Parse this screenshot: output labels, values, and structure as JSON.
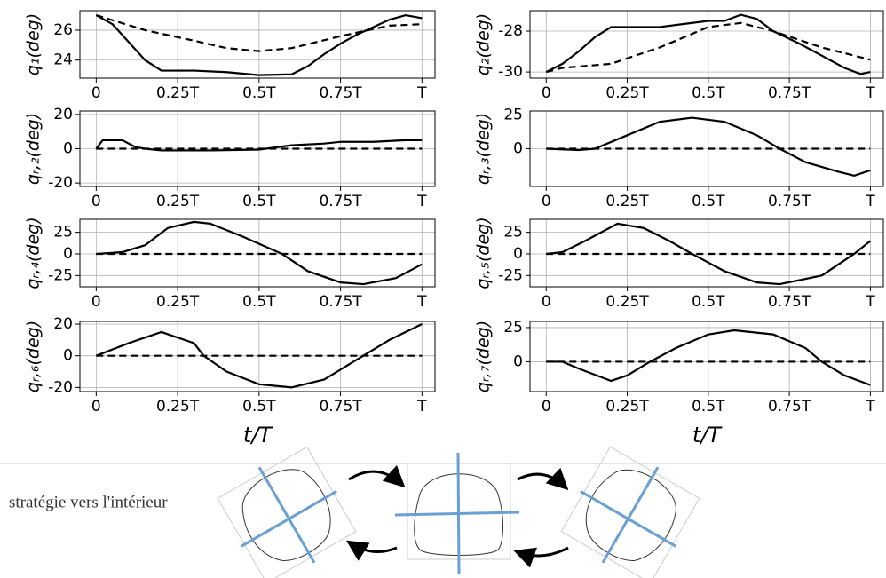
{
  "chart_data": [
    {
      "type": "line",
      "ylabel": "q₁(deg)",
      "xlim": [
        -0.05,
        1.04
      ],
      "ylim": [
        22.8,
        27.3
      ],
      "yticks": [
        24,
        26
      ],
      "grid": true,
      "xticks": [
        0,
        {
          "value": 0.25,
          "label": "0.25T"
        },
        {
          "value": 0.5,
          "label": "0.5T"
        },
        {
          "value": 0.75,
          "label": "0.75T"
        },
        {
          "value": 1,
          "label": "T"
        }
      ],
      "series": [
        {
          "color": "#000",
          "dash": false,
          "x": [
            0,
            0.05,
            0.1,
            0.15,
            0.2,
            0.3,
            0.4,
            0.5,
            0.6,
            0.65,
            0.7,
            0.75,
            0.8,
            0.85,
            0.9,
            0.95,
            1
          ],
          "values": [
            27,
            26.4,
            25.2,
            24,
            23.3,
            23.3,
            23.2,
            23,
            23.05,
            23.6,
            24.4,
            25.1,
            25.7,
            26.2,
            26.7,
            27,
            26.8
          ]
        },
        {
          "color": "#000",
          "dash": true,
          "x": [
            0,
            0.15,
            0.3,
            0.4,
            0.5,
            0.6,
            0.75,
            0.9,
            1
          ],
          "values": [
            27,
            26,
            25.3,
            24.8,
            24.6,
            24.8,
            25.6,
            26.3,
            26.4
          ]
        }
      ]
    },
    {
      "type": "line",
      "ylabel": "q₂(deg)",
      "xlim": [
        -0.05,
        1.04
      ],
      "ylim": [
        -30.3,
        -27
      ],
      "yticks": [
        -30,
        -28
      ],
      "grid": true,
      "xticks": [
        0,
        {
          "value": 0.25,
          "label": "0.25T"
        },
        {
          "value": 0.5,
          "label": "0.5T"
        },
        {
          "value": 0.75,
          "label": "0.75T"
        },
        {
          "value": 1,
          "label": "T"
        }
      ],
      "series": [
        {
          "color": "#000",
          "dash": false,
          "x": [
            0,
            0.05,
            0.1,
            0.15,
            0.2,
            0.35,
            0.5,
            0.55,
            0.6,
            0.65,
            0.7,
            0.78,
            0.85,
            0.92,
            0.97,
            1
          ],
          "values": [
            -30,
            -29.6,
            -29,
            -28.3,
            -27.8,
            -27.8,
            -27.5,
            -27.5,
            -27.2,
            -27.4,
            -28,
            -28.6,
            -29.2,
            -29.8,
            -30.1,
            -30
          ]
        },
        {
          "color": "#000",
          "dash": true,
          "x": [
            0,
            0.05,
            0.2,
            0.35,
            0.5,
            0.6,
            0.7,
            0.85,
            1
          ],
          "values": [
            -30,
            -29.8,
            -29.6,
            -28.8,
            -27.8,
            -27.6,
            -28,
            -28.8,
            -29.4
          ]
        }
      ]
    },
    {
      "type": "line",
      "ylabel": "qᵣ,₂(deg)",
      "xlim": [
        -0.05,
        1.04
      ],
      "ylim": [
        -22,
        22
      ],
      "yticks": [
        -20,
        0,
        20
      ],
      "grid": true,
      "xticks": [
        0,
        {
          "value": 0.25,
          "label": "0.25T"
        },
        {
          "value": 0.5,
          "label": "0.5T"
        },
        {
          "value": 0.75,
          "label": "0.75T"
        },
        {
          "value": 1,
          "label": "T"
        }
      ],
      "series": [
        {
          "color": "#000",
          "dash": false,
          "x": [
            0,
            0.02,
            0.08,
            0.12,
            0.15,
            0.2,
            0.35,
            0.5,
            0.6,
            0.7,
            0.75,
            0.85,
            0.95,
            1
          ],
          "values": [
            0,
            5,
            5,
            1,
            0,
            -1,
            -1,
            -0.5,
            2,
            3,
            4,
            4,
            5,
            5
          ]
        },
        {
          "color": "#000",
          "dash": true,
          "x": [
            0,
            1
          ],
          "values": [
            0,
            0
          ]
        }
      ]
    },
    {
      "type": "line",
      "ylabel": "qᵣ,₃(deg)",
      "xlim": [
        -0.05,
        1.04
      ],
      "ylim": [
        -28,
        28
      ],
      "yticks": [
        0,
        25
      ],
      "grid": true,
      "xticks": [
        0,
        {
          "value": 0.25,
          "label": "0.25T"
        },
        {
          "value": 0.5,
          "label": "0.5T"
        },
        {
          "value": 0.75,
          "label": "0.75T"
        },
        {
          "value": 1,
          "label": "T"
        }
      ],
      "series": [
        {
          "color": "#000",
          "dash": false,
          "x": [
            0,
            0.1,
            0.15,
            0.25,
            0.35,
            0.45,
            0.55,
            0.65,
            0.72,
            0.8,
            0.9,
            0.95,
            1
          ],
          "values": [
            0,
            -1,
            0,
            10,
            20,
            23,
            20,
            10,
            0,
            -10,
            -17,
            -20,
            -16
          ]
        },
        {
          "color": "#000",
          "dash": true,
          "x": [
            0,
            1
          ],
          "values": [
            0,
            0
          ]
        }
      ]
    },
    {
      "type": "line",
      "ylabel": "qᵣ,₄(deg)",
      "xlim": [
        -0.05,
        1.04
      ],
      "ylim": [
        -38,
        40
      ],
      "yticks": [
        -25,
        0,
        25
      ],
      "grid": true,
      "xticks": [
        0,
        {
          "value": 0.25,
          "label": "0.25T"
        },
        {
          "value": 0.5,
          "label": "0.5T"
        },
        {
          "value": 0.75,
          "label": "0.75T"
        },
        {
          "value": 1,
          "label": "T"
        }
      ],
      "series": [
        {
          "color": "#000",
          "dash": false,
          "x": [
            0,
            0.08,
            0.15,
            0.22,
            0.3,
            0.35,
            0.45,
            0.57,
            0.65,
            0.75,
            0.82,
            0.92,
            1
          ],
          "values": [
            0,
            2,
            10,
            30,
            37,
            35,
            20,
            0,
            -20,
            -33,
            -35,
            -28,
            -12
          ]
        },
        {
          "color": "#000",
          "dash": true,
          "x": [
            0,
            1
          ],
          "values": [
            0,
            0
          ]
        }
      ]
    },
    {
      "type": "line",
      "ylabel": "qᵣ,₅(deg)",
      "xlim": [
        -0.05,
        1.04
      ],
      "ylim": [
        -38,
        40
      ],
      "yticks": [
        -25,
        0,
        25
      ],
      "grid": true,
      "xticks": [
        0,
        {
          "value": 0.25,
          "label": "0.25T"
        },
        {
          "value": 0.5,
          "label": "0.5T"
        },
        {
          "value": 0.75,
          "label": "0.75T"
        },
        {
          "value": 1,
          "label": "T"
        }
      ],
      "series": [
        {
          "color": "#000",
          "dash": false,
          "x": [
            0,
            0.05,
            0.12,
            0.22,
            0.3,
            0.38,
            0.45,
            0.55,
            0.65,
            0.72,
            0.85,
            0.95,
            1
          ],
          "values": [
            0,
            2,
            15,
            35,
            30,
            15,
            0,
            -20,
            -33,
            -35,
            -25,
            0,
            15
          ]
        },
        {
          "color": "#000",
          "dash": true,
          "x": [
            0,
            1
          ],
          "values": [
            0,
            0
          ]
        }
      ]
    },
    {
      "type": "line",
      "ylabel": "qᵣ,₆(deg)",
      "xlabel": "t/T",
      "xlim": [
        -0.05,
        1.04
      ],
      "ylim": [
        -22.6,
        21.7
      ],
      "yticks": [
        -20,
        0,
        20
      ],
      "grid": true,
      "xticks": [
        0,
        {
          "value": 0.25,
          "label": "0.25T"
        },
        {
          "value": 0.5,
          "label": "0.5T"
        },
        {
          "value": 0.75,
          "label": "0.75T"
        },
        {
          "value": 1,
          "label": "T"
        }
      ],
      "series": [
        {
          "color": "#000",
          "dash": false,
          "x": [
            0,
            0.1,
            0.2,
            0.3,
            0.33,
            0.4,
            0.5,
            0.6,
            0.7,
            0.78,
            0.82,
            0.9,
            1
          ],
          "values": [
            0,
            8,
            15,
            8,
            0,
            -10,
            -18,
            -20,
            -15,
            -5,
            0,
            10,
            20
          ]
        },
        {
          "color": "#000",
          "dash": true,
          "x": [
            0,
            1
          ],
          "values": [
            0,
            0
          ]
        }
      ]
    },
    {
      "type": "line",
      "ylabel": "qᵣ,₇(deg)",
      "xlabel": "t/T",
      "xlim": [
        -0.05,
        1.04
      ],
      "ylim": [
        -21.8,
        29.5
      ],
      "yticks": [
        0,
        25
      ],
      "grid": true,
      "xticks": [
        0,
        {
          "value": 0.25,
          "label": "0.25T"
        },
        {
          "value": 0.5,
          "label": "0.5T"
        },
        {
          "value": 0.75,
          "label": "0.75T"
        },
        {
          "value": 1,
          "label": "T"
        }
      ],
      "series": [
        {
          "color": "#000",
          "dash": false,
          "x": [
            0,
            0.05,
            0.1,
            0.2,
            0.25,
            0.32,
            0.4,
            0.5,
            0.58,
            0.7,
            0.8,
            0.85,
            0.92,
            1
          ],
          "values": [
            0,
            0,
            -5,
            -14,
            -10,
            0,
            10,
            20,
            23,
            20,
            10,
            0,
            -10,
            -17
          ]
        },
        {
          "color": "#000",
          "dash": true,
          "x": [
            0,
            1
          ],
          "values": [
            0,
            0
          ]
        }
      ]
    }
  ],
  "diagram": {
    "label": "stratégie vers l'intérieur"
  }
}
